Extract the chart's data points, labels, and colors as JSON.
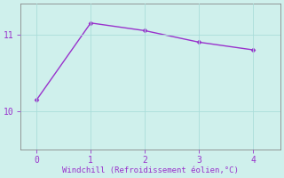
{
  "x": [
    0,
    1,
    2,
    3,
    4
  ],
  "y": [
    10.15,
    11.15,
    11.05,
    10.9,
    10.8
  ],
  "line_color": "#9932CC",
  "marker": "D",
  "marker_size": 2.5,
  "background_color": "#cff0ec",
  "grid_color": "#aaddda",
  "xlabel": "Windchill (Refroidissement éolien,°C)",
  "xlabel_color": "#9932CC",
  "tick_color": "#9932CC",
  "spine_color": "#888888",
  "xlim": [
    -0.3,
    4.5
  ],
  "ylim": [
    9.5,
    11.4
  ],
  "yticks": [
    10,
    11
  ],
  "xticks": [
    0,
    1,
    2,
    3,
    4
  ],
  "figsize": [
    3.2,
    2.0
  ],
  "dpi": 100
}
